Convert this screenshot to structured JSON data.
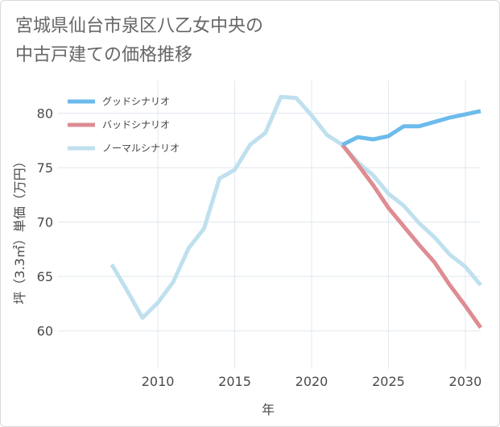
{
  "title_line1": "宮城県仙台市泉区八乙女中央の",
  "title_line2": "中古戸建ての価格推移",
  "chart_data": {
    "type": "line",
    "xlabel": "年",
    "ylabel": "坪（3.3㎡）単価（万円）",
    "xlim": [
      2003.5,
      2031
    ],
    "ylim": [
      56.5,
      83
    ],
    "xticks": [
      2010,
      2015,
      2020,
      2025,
      2030
    ],
    "yticks": [
      60,
      65,
      70,
      75,
      80
    ],
    "grid": true,
    "legend_position": "top-left",
    "series": [
      {
        "name": "グッドシナリオ",
        "color": "#6bbbeb",
        "x": [
          2022,
          2023,
          2024,
          2025,
          2026,
          2027,
          2028,
          2029,
          2030,
          2031
        ],
        "y": [
          77.1,
          77.8,
          77.6,
          77.9,
          78.8,
          78.8,
          79.2,
          79.6,
          79.9,
          80.2
        ]
      },
      {
        "name": "バッドシナリオ",
        "color": "#de8c92",
        "x": [
          2022,
          2023,
          2024,
          2025,
          2026,
          2027,
          2028,
          2029,
          2030,
          2031
        ],
        "y": [
          77.1,
          75.3,
          73.4,
          71.3,
          69.6,
          67.9,
          66.3,
          64.2,
          62.3,
          60.3
        ]
      },
      {
        "name": "ノーマルシナリオ",
        "color": "#bfe0ee",
        "x": [
          2007,
          2008,
          2009,
          2010,
          2011,
          2012,
          2013,
          2014,
          2015,
          2016,
          2017,
          2018,
          2019,
          2020,
          2021,
          2022,
          2023,
          2024,
          2025,
          2026,
          2027,
          2028,
          2029,
          2030,
          2031
        ],
        "y": [
          66.1,
          63.7,
          61.2,
          62.6,
          64.5,
          67.6,
          69.4,
          74.0,
          74.8,
          77.1,
          78.2,
          81.5,
          81.4,
          79.8,
          78.0,
          77.1,
          75.5,
          74.3,
          72.6,
          71.5,
          69.9,
          68.6,
          67.0,
          65.9,
          64.2
        ]
      }
    ]
  }
}
